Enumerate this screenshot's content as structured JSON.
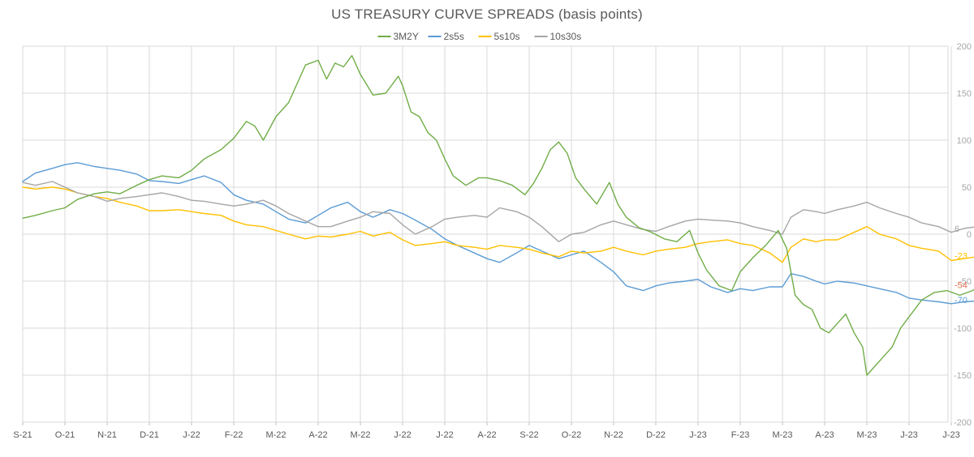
{
  "chart_data": {
    "type": "line",
    "title": "US TREASURY CURVE SPREADS (basis points)",
    "x_tick_labels": [
      "S-21",
      "O-21",
      "N-21",
      "D-21",
      "J-22",
      "F-22",
      "M-22",
      "A-22",
      "M-22",
      "J-22",
      "J-22",
      "A-22",
      "S-22",
      "O-22",
      "N-22",
      "D-22",
      "J-23",
      "F-23",
      "M-23",
      "A-23",
      "M-23",
      "J-23",
      "J-23"
    ],
    "ylim": [
      -200,
      200
    ],
    "y_ticks": [
      -200,
      -150,
      -100,
      -50,
      0,
      50,
      100,
      150,
      200
    ],
    "y_tick_labels": [
      "-200",
      "-150",
      "-100",
      "-50",
      "0",
      "50",
      "100",
      "150",
      "200"
    ],
    "grid": true,
    "legend_position": "top-center",
    "x_index_range": [
      0,
      22.8
    ],
    "series": [
      {
        "name": "3M2Y",
        "color": "#70ad47",
        "end_label": "-54",
        "end_label_color": "#e06c4c",
        "points": [
          [
            0,
            17
          ],
          [
            0.3,
            20
          ],
          [
            0.7,
            25
          ],
          [
            1,
            28
          ],
          [
            1.3,
            37
          ],
          [
            1.7,
            43
          ],
          [
            2,
            45
          ],
          [
            2.3,
            43
          ],
          [
            2.7,
            52
          ],
          [
            3,
            58
          ],
          [
            3.3,
            62
          ],
          [
            3.7,
            60
          ],
          [
            4,
            68
          ],
          [
            4.3,
            80
          ],
          [
            4.7,
            90
          ],
          [
            5,
            102
          ],
          [
            5.3,
            120
          ],
          [
            5.5,
            115
          ],
          [
            5.7,
            100
          ],
          [
            6,
            125
          ],
          [
            6.3,
            140
          ],
          [
            6.5,
            160
          ],
          [
            6.7,
            180
          ],
          [
            7,
            185
          ],
          [
            7.2,
            165
          ],
          [
            7.4,
            182
          ],
          [
            7.6,
            178
          ],
          [
            7.8,
            190
          ],
          [
            8,
            170
          ],
          [
            8.3,
            148
          ],
          [
            8.6,
            150
          ],
          [
            8.9,
            168
          ],
          [
            9,
            158
          ],
          [
            9.2,
            130
          ],
          [
            9.4,
            125
          ],
          [
            9.6,
            108
          ],
          [
            9.8,
            100
          ],
          [
            10,
            80
          ],
          [
            10.2,
            62
          ],
          [
            10.5,
            52
          ],
          [
            10.8,
            60
          ],
          [
            11,
            60
          ],
          [
            11.3,
            57
          ],
          [
            11.6,
            52
          ],
          [
            11.9,
            42
          ],
          [
            12.1,
            54
          ],
          [
            12.3,
            70
          ],
          [
            12.5,
            90
          ],
          [
            12.7,
            98
          ],
          [
            12.9,
            86
          ],
          [
            13.1,
            60
          ],
          [
            13.3,
            48
          ],
          [
            13.6,
            32
          ],
          [
            13.9,
            55
          ],
          [
            14.1,
            32
          ],
          [
            14.3,
            18
          ],
          [
            14.6,
            7
          ],
          [
            14.9,
            2
          ],
          [
            15.2,
            -5
          ],
          [
            15.5,
            -8
          ],
          [
            15.8,
            4
          ],
          [
            16,
            -20
          ],
          [
            16.2,
            -38
          ],
          [
            16.5,
            -55
          ],
          [
            16.8,
            -60
          ],
          [
            17,
            -40
          ],
          [
            17.3,
            -25
          ],
          [
            17.6,
            -12
          ],
          [
            17.9,
            4
          ],
          [
            18.1,
            -15
          ],
          [
            18.3,
            -65
          ],
          [
            18.5,
            -75
          ],
          [
            18.7,
            -80
          ],
          [
            18.9,
            -100
          ],
          [
            19.1,
            -105
          ],
          [
            19.3,
            -95
          ],
          [
            19.5,
            -85
          ],
          [
            19.7,
            -105
          ],
          [
            19.9,
            -120
          ],
          [
            20,
            -150
          ],
          [
            20.2,
            -140
          ],
          [
            20.4,
            -130
          ],
          [
            20.6,
            -120
          ],
          [
            20.8,
            -100
          ],
          [
            21,
            -88
          ],
          [
            21.3,
            -70
          ],
          [
            21.6,
            -62
          ],
          [
            21.9,
            -60
          ],
          [
            22.2,
            -65
          ],
          [
            22.5,
            -60
          ],
          [
            22.7,
            -55
          ],
          [
            22.8,
            -54
          ]
        ]
      },
      {
        "name": "2s5s",
        "color": "#5b9bd5",
        "end_label": "-70",
        "end_label_color": "#5b9bd5",
        "points": [
          [
            0,
            56
          ],
          [
            0.3,
            65
          ],
          [
            0.7,
            70
          ],
          [
            1,
            74
          ],
          [
            1.3,
            76
          ],
          [
            1.7,
            72
          ],
          [
            2,
            70
          ],
          [
            2.3,
            68
          ],
          [
            2.7,
            64
          ],
          [
            3,
            57
          ],
          [
            3.3,
            56
          ],
          [
            3.7,
            54
          ],
          [
            4,
            58
          ],
          [
            4.3,
            62
          ],
          [
            4.7,
            55
          ],
          [
            5,
            42
          ],
          [
            5.3,
            36
          ],
          [
            5.7,
            32
          ],
          [
            6,
            24
          ],
          [
            6.3,
            16
          ],
          [
            6.7,
            12
          ],
          [
            7,
            20
          ],
          [
            7.3,
            28
          ],
          [
            7.7,
            34
          ],
          [
            8,
            24
          ],
          [
            8.3,
            18
          ],
          [
            8.7,
            26
          ],
          [
            9,
            22
          ],
          [
            9.3,
            15
          ],
          [
            9.7,
            5
          ],
          [
            10,
            -5
          ],
          [
            10.3,
            -12
          ],
          [
            10.7,
            -20
          ],
          [
            11,
            -26
          ],
          [
            11.3,
            -30
          ],
          [
            11.7,
            -20
          ],
          [
            12,
            -12
          ],
          [
            12.3,
            -18
          ],
          [
            12.7,
            -26
          ],
          [
            13,
            -22
          ],
          [
            13.3,
            -18
          ],
          [
            13.7,
            -30
          ],
          [
            14,
            -40
          ],
          [
            14.3,
            -55
          ],
          [
            14.7,
            -60
          ],
          [
            15,
            -55
          ],
          [
            15.3,
            -52
          ],
          [
            15.7,
            -50
          ],
          [
            16,
            -48
          ],
          [
            16.3,
            -56
          ],
          [
            16.7,
            -62
          ],
          [
            17,
            -58
          ],
          [
            17.3,
            -60
          ],
          [
            17.7,
            -56
          ],
          [
            18,
            -56
          ],
          [
            18.2,
            -42
          ],
          [
            18.5,
            -45
          ],
          [
            18.8,
            -50
          ],
          [
            19,
            -53
          ],
          [
            19.3,
            -50
          ],
          [
            19.7,
            -52
          ],
          [
            20,
            -55
          ],
          [
            20.3,
            -58
          ],
          [
            20.7,
            -62
          ],
          [
            21,
            -68
          ],
          [
            21.3,
            -70
          ],
          [
            21.7,
            -72
          ],
          [
            22,
            -74
          ],
          [
            22.3,
            -72
          ],
          [
            22.6,
            -71
          ],
          [
            22.8,
            -70
          ]
        ]
      },
      {
        "name": "5s10s",
        "color": "#ffc000",
        "end_label": "-23",
        "end_label_color": "#ffc000",
        "points": [
          [
            0,
            50
          ],
          [
            0.3,
            48
          ],
          [
            0.7,
            50
          ],
          [
            1,
            48
          ],
          [
            1.3,
            44
          ],
          [
            1.7,
            40
          ],
          [
            2,
            38
          ],
          [
            2.3,
            34
          ],
          [
            2.7,
            30
          ],
          [
            3,
            25
          ],
          [
            3.3,
            25
          ],
          [
            3.7,
            26
          ],
          [
            4,
            24
          ],
          [
            4.3,
            22
          ],
          [
            4.7,
            20
          ],
          [
            5,
            14
          ],
          [
            5.3,
            10
          ],
          [
            5.7,
            8
          ],
          [
            6,
            4
          ],
          [
            6.3,
            0
          ],
          [
            6.7,
            -5
          ],
          [
            7,
            -2
          ],
          [
            7.3,
            -3
          ],
          [
            7.7,
            0
          ],
          [
            8,
            3
          ],
          [
            8.3,
            -2
          ],
          [
            8.7,
            2
          ],
          [
            9,
            -6
          ],
          [
            9.3,
            -12
          ],
          [
            9.7,
            -10
          ],
          [
            10,
            -8
          ],
          [
            10.3,
            -12
          ],
          [
            10.7,
            -14
          ],
          [
            11,
            -16
          ],
          [
            11.3,
            -12
          ],
          [
            11.7,
            -14
          ],
          [
            12,
            -16
          ],
          [
            12.3,
            -20
          ],
          [
            12.7,
            -24
          ],
          [
            13,
            -18
          ],
          [
            13.3,
            -20
          ],
          [
            13.7,
            -18
          ],
          [
            14,
            -14
          ],
          [
            14.3,
            -18
          ],
          [
            14.7,
            -22
          ],
          [
            15,
            -18
          ],
          [
            15.3,
            -16
          ],
          [
            15.7,
            -14
          ],
          [
            16,
            -10
          ],
          [
            16.3,
            -8
          ],
          [
            16.7,
            -6
          ],
          [
            17,
            -10
          ],
          [
            17.3,
            -12
          ],
          [
            17.7,
            -20
          ],
          [
            18,
            -30
          ],
          [
            18.2,
            -14
          ],
          [
            18.5,
            -5
          ],
          [
            18.8,
            -8
          ],
          [
            19,
            -6
          ],
          [
            19.3,
            -6
          ],
          [
            19.7,
            2
          ],
          [
            20,
            8
          ],
          [
            20.3,
            0
          ],
          [
            20.7,
            -5
          ],
          [
            21,
            -12
          ],
          [
            21.3,
            -15
          ],
          [
            21.7,
            -18
          ],
          [
            22,
            -28
          ],
          [
            22.3,
            -26
          ],
          [
            22.6,
            -24
          ],
          [
            22.8,
            -23
          ]
        ]
      },
      {
        "name": "10s30s",
        "color": "#a5a5a5",
        "end_label": "6",
        "end_label_color": "#a5a5a5",
        "points": [
          [
            0,
            55
          ],
          [
            0.3,
            52
          ],
          [
            0.7,
            56
          ],
          [
            1,
            50
          ],
          [
            1.3,
            44
          ],
          [
            1.7,
            40
          ],
          [
            2,
            35
          ],
          [
            2.3,
            38
          ],
          [
            2.7,
            40
          ],
          [
            3,
            42
          ],
          [
            3.3,
            44
          ],
          [
            3.7,
            40
          ],
          [
            4,
            36
          ],
          [
            4.3,
            35
          ],
          [
            4.7,
            32
          ],
          [
            5,
            30
          ],
          [
            5.3,
            32
          ],
          [
            5.7,
            36
          ],
          [
            6,
            30
          ],
          [
            6.3,
            22
          ],
          [
            6.7,
            14
          ],
          [
            7,
            8
          ],
          [
            7.3,
            8
          ],
          [
            7.7,
            14
          ],
          [
            8,
            18
          ],
          [
            8.3,
            24
          ],
          [
            8.7,
            22
          ],
          [
            9,
            10
          ],
          [
            9.3,
            0
          ],
          [
            9.7,
            8
          ],
          [
            10,
            16
          ],
          [
            10.3,
            18
          ],
          [
            10.7,
            20
          ],
          [
            11,
            18
          ],
          [
            11.3,
            28
          ],
          [
            11.7,
            24
          ],
          [
            12,
            18
          ],
          [
            12.3,
            8
          ],
          [
            12.7,
            -8
          ],
          [
            13,
            0
          ],
          [
            13.3,
            2
          ],
          [
            13.7,
            10
          ],
          [
            14,
            14
          ],
          [
            14.3,
            10
          ],
          [
            14.7,
            5
          ],
          [
            15,
            3
          ],
          [
            15.3,
            8
          ],
          [
            15.7,
            14
          ],
          [
            16,
            16
          ],
          [
            16.3,
            15
          ],
          [
            16.7,
            14
          ],
          [
            17,
            12
          ],
          [
            17.3,
            8
          ],
          [
            17.7,
            4
          ],
          [
            18,
            0
          ],
          [
            18.2,
            18
          ],
          [
            18.5,
            26
          ],
          [
            18.8,
            24
          ],
          [
            19,
            22
          ],
          [
            19.3,
            26
          ],
          [
            19.7,
            30
          ],
          [
            20,
            34
          ],
          [
            20.3,
            28
          ],
          [
            20.7,
            22
          ],
          [
            21,
            18
          ],
          [
            21.3,
            12
          ],
          [
            21.7,
            8
          ],
          [
            22,
            2
          ],
          [
            22.3,
            6
          ],
          [
            22.6,
            8
          ],
          [
            22.8,
            6
          ]
        ]
      }
    ]
  }
}
